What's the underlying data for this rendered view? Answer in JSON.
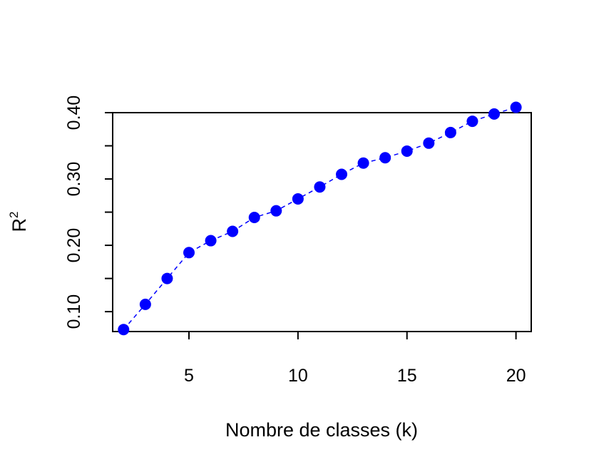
{
  "chart_data": {
    "type": "scatter",
    "title": "",
    "xlabel": "Nombre de classes (k)",
    "ylabel_base": "R",
    "ylabel_sup": "2",
    "xlim": [
      1.5,
      20.7
    ],
    "ylim": [
      0.07,
      0.4
    ],
    "x_ticks": [
      5,
      10,
      15,
      20
    ],
    "x_tick_labels": [
      "5",
      "10",
      "15",
      "20"
    ],
    "y_ticks": [
      0.1,
      0.15,
      0.2,
      0.25,
      0.3,
      0.35,
      0.4
    ],
    "y_tick_labels": [
      "0.10",
      "",
      "0.20",
      "",
      "0.30",
      "",
      "0.40"
    ],
    "grid": false,
    "point_color": "#0000FF",
    "line_style": "dashed",
    "series": [
      {
        "x": [
          2,
          3,
          4,
          5,
          6,
          7,
          8,
          9,
          10,
          11,
          12,
          13,
          14,
          15,
          16,
          17,
          18,
          19,
          20
        ],
        "y": [
          0.073,
          0.111,
          0.15,
          0.189,
          0.207,
          0.221,
          0.242,
          0.252,
          0.27,
          0.288,
          0.307,
          0.324,
          0.332,
          0.342,
          0.354,
          0.37,
          0.387,
          0.398,
          0.408
        ]
      }
    ]
  }
}
